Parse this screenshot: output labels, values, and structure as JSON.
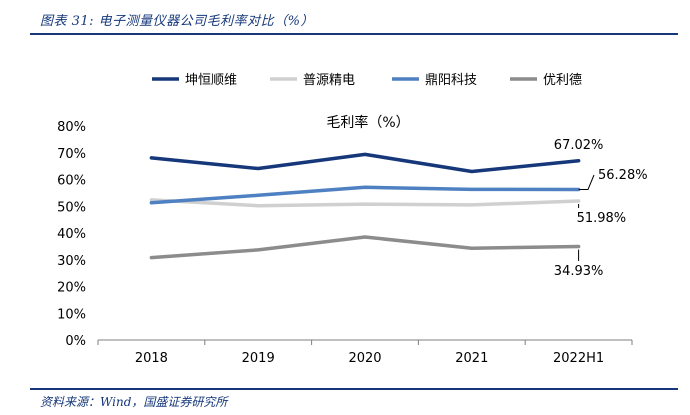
{
  "figure": {
    "title": "图表 31: 电子测量仪器公司毛利率对比（%）",
    "source": "资料来源：Wind，国盛证券研究所"
  },
  "chart_data": {
    "type": "line",
    "title": "毛利率（%）",
    "xlabel": "",
    "ylabel": "",
    "categories": [
      "2018",
      "2019",
      "2020",
      "2021",
      "2022H1"
    ],
    "ylim": [
      0,
      80
    ],
    "yticks": [
      "0%",
      "10%",
      "20%",
      "30%",
      "40%",
      "50%",
      "60%",
      "70%",
      "80%"
    ],
    "grid": false,
    "legend_position": "top",
    "series": [
      {
        "name": "坤恒顺维",
        "color": "#16387a",
        "values": [
          68.1,
          64.1,
          69.4,
          63.0,
          67.02
        ],
        "end_label": "67.02%"
      },
      {
        "name": "普源精电",
        "color": "#d0d0d0",
        "values": [
          52.4,
          50.2,
          50.8,
          50.5,
          51.98
        ],
        "end_label": "51.98%"
      },
      {
        "name": "鼎阳科技",
        "color": "#4f81c2",
        "values": [
          51.3,
          54.1,
          57.1,
          56.3,
          56.28
        ],
        "end_label": "56.28%"
      },
      {
        "name": "优利德",
        "color": "#8c8c8c",
        "values": [
          30.8,
          33.7,
          38.5,
          34.3,
          34.93
        ],
        "end_label": "34.93%"
      }
    ]
  }
}
